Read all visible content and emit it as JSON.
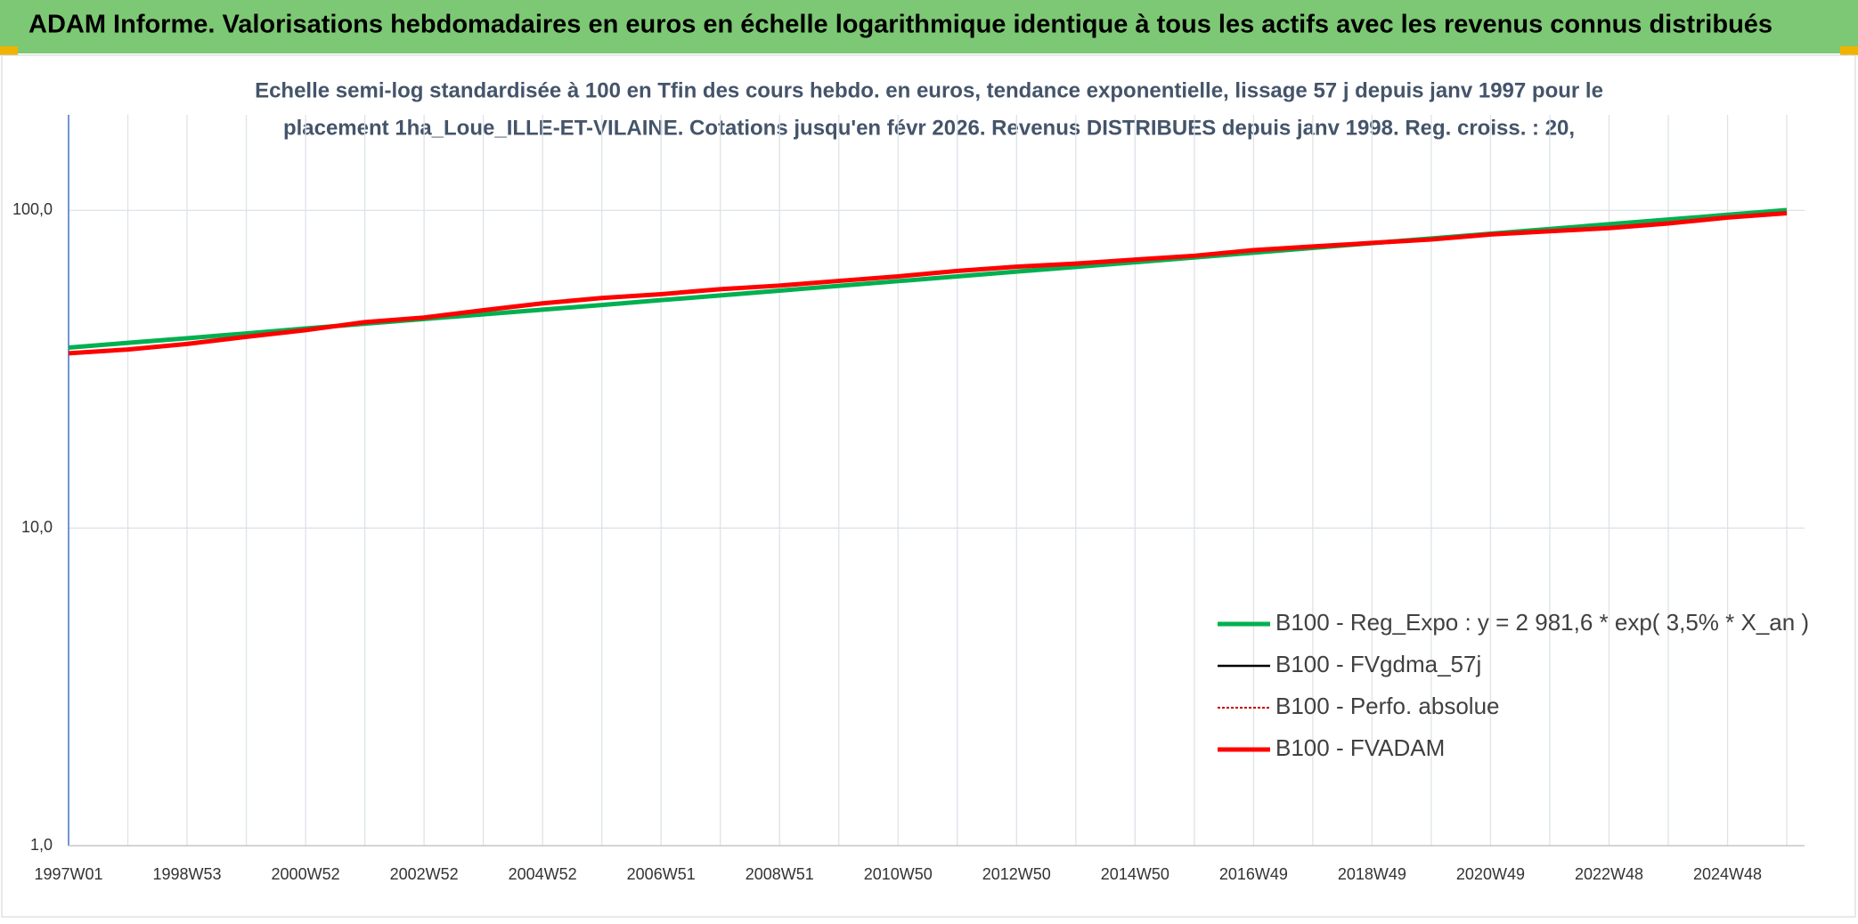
{
  "chart_data": {
    "type": "line",
    "title": "ADAM Informe. Valorisations hebdomadaires en euros en échelle logarithmique identique à tous les actifs avec les revenus connus distribués",
    "subtitle": [
      "Echelle semi-log standardisée à 100 en Tfin des cours hebdo. en euros, tendance exponentielle, lissage 57 j depuis janv 1997 pour le",
      "placement 1ha_Loue_ILLE-ET-VILAINE. Cotations jusqu'en févr 2026. Revenus DISTRIBUES depuis janv 1998. Reg. croiss. : 20,"
    ],
    "categories": [
      "1997W01",
      null,
      "1998W53",
      null,
      "2000W52",
      null,
      "2002W52",
      null,
      "2004W52",
      null,
      "2006W51",
      null,
      "2008W51",
      null,
      "2010W50",
      null,
      "2012W50",
      null,
      "2014W50",
      null,
      "2016W49",
      null,
      "2018W49",
      null,
      "2020W49",
      null,
      "2022W48",
      null,
      "2024W48",
      null
    ],
    "log_scale": true,
    "ylim": [
      1,
      200
    ],
    "yticks": [
      {
        "value": 1,
        "label": "1,0"
      },
      {
        "value": 10,
        "label": "10,0"
      },
      {
        "value": 100,
        "label": "100,0"
      }
    ],
    "grid": true,
    "legend": "lower-right",
    "series": [
      {
        "name": "B100 - Reg_Expo : y = 2 981,6 * exp( 3,5% *  X_an )",
        "color": "#00b050",
        "style": "solid",
        "values": [
          37,
          38.3,
          39.6,
          41,
          42.5,
          44,
          45.5,
          47.1,
          48.7,
          50.4,
          52.2,
          54,
          55.9,
          57.9,
          59.9,
          62,
          64.2,
          66.4,
          68.7,
          71.1,
          73.6,
          76.2,
          78.9,
          81.6,
          84.5,
          87.4,
          90.5,
          93.6,
          96.9,
          100.3
        ]
      },
      {
        "name": "B100 - FVgdma_57j",
        "color": "#000000",
        "style": "solid",
        "values": [
          35.5,
          36.5,
          38,
          40,
          42,
          44.5,
          46,
          48.5,
          51,
          53,
          54.5,
          56.5,
          58,
          60,
          62,
          64.5,
          66.5,
          68,
          70,
          72,
          75,
          77,
          79,
          81,
          84,
          86,
          88,
          91,
          95,
          98
        ]
      },
      {
        "name": "B100 - Perfo. absolue",
        "color": "#c00000",
        "style": "dotted",
        "values": [
          35.5,
          36.5,
          38,
          40,
          42,
          44.5,
          46,
          48.5,
          51,
          53,
          54.5,
          56.5,
          58,
          60,
          62,
          64.5,
          66.5,
          68,
          70,
          72,
          75,
          77,
          79,
          81,
          84,
          86,
          88,
          91,
          95,
          98
        ]
      },
      {
        "name": "B100 - FVADAM",
        "color": "#ff0000",
        "style": "solid",
        "values": [
          35.5,
          36.5,
          38,
          40,
          42,
          44.5,
          46,
          48.5,
          51,
          53,
          54.5,
          56.5,
          58,
          60,
          62,
          64.5,
          66.5,
          68,
          70,
          72,
          75,
          77,
          79,
          81,
          84,
          86,
          88,
          91,
          95,
          98
        ]
      }
    ]
  }
}
